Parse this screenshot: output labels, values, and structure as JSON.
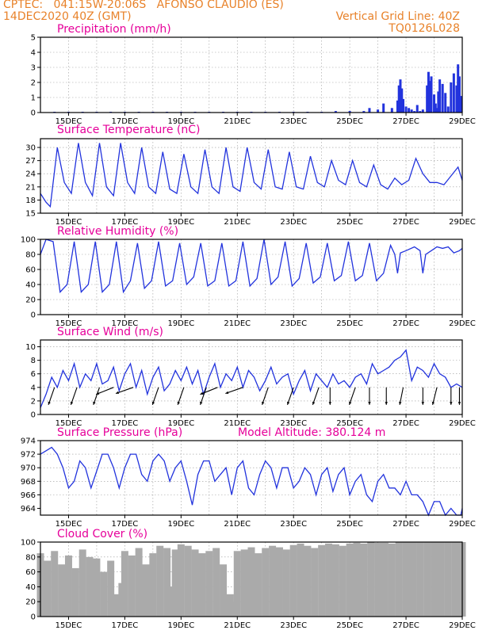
{
  "header": {
    "station": "CPTEC:   041:15W-20:06S   AFONSO CLAUDIO (ES)",
    "run": "14DEC2020 40Z (GMT)",
    "grid_line": "Vertical Grid Line: 40Z",
    "code": "TQ0126L028"
  },
  "colors": {
    "header": "#e8822a",
    "title": "#e6009a",
    "line": "#2233dd",
    "cloud": "#aaaaaa",
    "grid": "#999999"
  },
  "chart_data": [
    {
      "type": "bar",
      "title": "Precipitation (mm/h)",
      "ylim": [
        0,
        5
      ],
      "yticks": [
        0,
        1,
        2,
        3,
        4,
        5
      ],
      "xticks": [
        "15DEC",
        "17DEC",
        "19DEC",
        "21DEC",
        "23DEC",
        "25DEC",
        "27DEC",
        "29DEC"
      ],
      "series": [
        {
          "x": [
            0.5,
            1.0,
            1.5,
            2.0,
            2.5,
            3.0,
            3.5,
            4.0,
            4.5,
            5.0,
            5.5,
            6.0,
            6.5,
            7.0,
            7.5,
            8.0,
            8.5,
            9.0,
            9.5,
            10.0,
            10.5,
            11.0,
            11.5,
            11.7,
            12.0,
            12.2,
            12.5,
            12.7,
            12.75,
            12.8,
            12.85,
            12.9,
            13.0,
            13.1,
            13.2,
            13.3,
            13.4,
            13.5,
            13.6,
            13.75,
            13.8,
            13.85,
            13.9,
            14.0,
            14.05,
            14.1,
            14.15,
            14.2,
            14.3,
            14.4,
            14.5,
            14.6,
            14.7,
            14.8,
            14.85,
            14.9,
            14.95
          ],
          "values": [
            0.05,
            0.05,
            0.05,
            0.05,
            0.05,
            0.05,
            0.05,
            0.05,
            0.05,
            0.05,
            0.05,
            0.05,
            0.05,
            0.05,
            0.05,
            0.05,
            0.05,
            0.05,
            0.05,
            0.05,
            0.1,
            0.1,
            0.1,
            0.3,
            0.2,
            0.6,
            0.3,
            0.8,
            1.8,
            2.2,
            1.6,
            0.9,
            0.4,
            0.3,
            0.2,
            0.1,
            0.5,
            0.1,
            0.2,
            1.8,
            2.7,
            2.1,
            2.4,
            1.2,
            0.6,
            0.3,
            1.4,
            2.2,
            1.9,
            1.3,
            0.4,
            2.0,
            2.6,
            1.8,
            3.2,
            2.4,
            1.1
          ]
        }
      ]
    },
    {
      "type": "line",
      "title": "Surface Temperature (nC)",
      "ylim": [
        15,
        32
      ],
      "yticks": [
        15,
        18,
        21,
        24,
        27,
        30
      ],
      "xticks": [
        "15DEC",
        "17DEC",
        "19DEC",
        "21DEC",
        "23DEC",
        "25DEC",
        "27DEC",
        "29DEC"
      ],
      "series": [
        {
          "x": [
            0.0,
            0.2,
            0.35,
            0.6,
            0.85,
            1.1,
            1.35,
            1.6,
            1.85,
            2.1,
            2.35,
            2.6,
            2.85,
            3.1,
            3.35,
            3.6,
            3.85,
            4.1,
            4.35,
            4.6,
            4.85,
            5.1,
            5.35,
            5.6,
            5.85,
            6.1,
            6.35,
            6.6,
            6.85,
            7.1,
            7.35,
            7.6,
            7.85,
            8.1,
            8.35,
            8.6,
            8.85,
            9.1,
            9.35,
            9.6,
            9.85,
            10.1,
            10.35,
            10.6,
            10.85,
            11.1,
            11.35,
            11.6,
            11.85,
            12.1,
            12.35,
            12.6,
            12.85,
            13.1,
            13.35,
            13.6,
            13.85,
            14.1,
            14.35,
            14.6,
            14.85,
            15.0
          ],
          "values": [
            19.5,
            17.5,
            16.5,
            30,
            22,
            19.5,
            31,
            22,
            19,
            31,
            21,
            19,
            31,
            22,
            19.5,
            30,
            21,
            19.5,
            29,
            20.5,
            19.5,
            28.5,
            21,
            19.5,
            29.5,
            21,
            19.5,
            30,
            21,
            20,
            30,
            22,
            20.5,
            29.5,
            21,
            20.5,
            29,
            21,
            20.5,
            28,
            22,
            21,
            27,
            22.5,
            21.5,
            27,
            22,
            21,
            26,
            21.5,
            20.5,
            23,
            21.5,
            22.5,
            27.5,
            24,
            22,
            22,
            21.5,
            23.5,
            25.5,
            22.5
          ]
        }
      ]
    },
    {
      "type": "line",
      "title": "Relative Humidity (%)",
      "ylim": [
        0,
        100
      ],
      "yticks": [
        0,
        20,
        40,
        60,
        80,
        100
      ],
      "xticks": [
        "15DEC",
        "17DEC",
        "19DEC",
        "21DEC",
        "23DEC",
        "25DEC",
        "27DEC",
        "29DEC"
      ],
      "series": [
        {
          "x": [
            0.0,
            0.2,
            0.45,
            0.7,
            0.95,
            1.2,
            1.45,
            1.7,
            1.95,
            2.2,
            2.45,
            2.7,
            2.95,
            3.2,
            3.45,
            3.7,
            3.95,
            4.2,
            4.45,
            4.7,
            4.95,
            5.2,
            5.45,
            5.7,
            5.95,
            6.2,
            6.45,
            6.7,
            6.95,
            7.2,
            7.45,
            7.7,
            7.95,
            8.2,
            8.45,
            8.7,
            8.95,
            9.2,
            9.45,
            9.7,
            9.95,
            10.2,
            10.45,
            10.7,
            10.95,
            11.2,
            11.45,
            11.7,
            11.95,
            12.2,
            12.45,
            12.6,
            12.7,
            12.8,
            13.0,
            13.3,
            13.5,
            13.6,
            13.7,
            13.9,
            14.1,
            14.3,
            14.5,
            14.7,
            14.9,
            15.0
          ],
          "values": [
            80,
            100,
            97,
            30,
            40,
            97,
            30,
            40,
            97,
            30,
            40,
            97,
            30,
            45,
            95,
            35,
            45,
            97,
            38,
            45,
            95,
            40,
            50,
            95,
            38,
            45,
            95,
            38,
            45,
            97,
            38,
            48,
            100,
            40,
            50,
            97,
            38,
            48,
            95,
            42,
            50,
            95,
            45,
            52,
            97,
            45,
            52,
            95,
            45,
            55,
            92,
            80,
            55,
            82,
            85,
            90,
            85,
            55,
            80,
            85,
            90,
            88,
            90,
            82,
            85,
            88
          ]
        }
      ]
    },
    {
      "type": "line",
      "title": "Surface Wind (m/s)",
      "ylim": [
        0,
        11
      ],
      "yticks": [
        0,
        2,
        4,
        6,
        8,
        10
      ],
      "xticks": [
        "15DEC",
        "17DEC",
        "19DEC",
        "21DEC",
        "23DEC",
        "25DEC",
        "27DEC",
        "29DEC"
      ],
      "series": [
        {
          "x": [
            0.0,
            0.2,
            0.4,
            0.6,
            0.8,
            1.0,
            1.2,
            1.4,
            1.6,
            1.8,
            2.0,
            2.2,
            2.4,
            2.6,
            2.8,
            3.0,
            3.2,
            3.4,
            3.6,
            3.8,
            4.0,
            4.2,
            4.4,
            4.6,
            4.8,
            5.0,
            5.2,
            5.4,
            5.6,
            5.8,
            6.0,
            6.2,
            6.4,
            6.6,
            6.8,
            7.0,
            7.2,
            7.4,
            7.6,
            7.8,
            8.0,
            8.2,
            8.4,
            8.6,
            8.8,
            9.0,
            9.2,
            9.4,
            9.6,
            9.8,
            10.0,
            10.2,
            10.4,
            10.6,
            10.8,
            11.0,
            11.2,
            11.4,
            11.6,
            11.8,
            12.0,
            12.2,
            12.4,
            12.6,
            12.8,
            13.0,
            13.2,
            13.4,
            13.6,
            13.8,
            14.0,
            14.2,
            14.4,
            14.6,
            14.8,
            15.0
          ],
          "values": [
            1,
            3,
            5.5,
            4,
            6.5,
            5,
            7.5,
            4,
            6,
            5,
            7.5,
            4.5,
            5,
            7,
            3.5,
            6,
            7.5,
            4,
            6.5,
            3,
            5.5,
            7,
            3.5,
            4.5,
            6.5,
            5,
            7,
            4.5,
            6.5,
            3,
            5.5,
            7.5,
            4,
            6,
            5,
            7,
            4,
            6.5,
            5.5,
            3.5,
            5,
            7,
            4.5,
            5.5,
            6,
            3,
            5,
            6.5,
            3.5,
            6,
            5,
            4,
            6,
            4.5,
            5,
            4,
            5.5,
            6,
            4.5,
            7.5,
            6,
            6.5,
            7,
            8,
            8.5,
            9.5,
            5,
            7,
            6.5,
            5.5,
            7.5,
            6,
            5.5,
            4,
            4.5,
            4
          ]
        }
      ]
    },
    {
      "type": "line",
      "title": "Surface Pressure (hPa)",
      "annotation": "Model Altitude: 380.124 m",
      "ylim": [
        963,
        974
      ],
      "yticks": [
        964,
        966,
        968,
        970,
        972,
        974
      ],
      "xticks": [
        "15DEC",
        "17DEC",
        "19DEC",
        "21DEC",
        "23DEC",
        "25DEC",
        "27DEC",
        "29DEC"
      ],
      "series": [
        {
          "x": [
            0.0,
            0.2,
            0.4,
            0.6,
            0.8,
            1.0,
            1.2,
            1.4,
            1.6,
            1.8,
            2.0,
            2.2,
            2.4,
            2.6,
            2.8,
            3.0,
            3.2,
            3.4,
            3.6,
            3.8,
            4.0,
            4.2,
            4.4,
            4.6,
            4.8,
            5.0,
            5.2,
            5.4,
            5.6,
            5.8,
            6.0,
            6.2,
            6.4,
            6.6,
            6.8,
            7.0,
            7.2,
            7.4,
            7.6,
            7.8,
            8.0,
            8.2,
            8.4,
            8.6,
            8.8,
            9.0,
            9.2,
            9.4,
            9.6,
            9.8,
            10.0,
            10.2,
            10.4,
            10.6,
            10.8,
            11.0,
            11.2,
            11.4,
            11.6,
            11.8,
            12.0,
            12.2,
            12.4,
            12.6,
            12.8,
            13.0,
            13.2,
            13.4,
            13.6,
            13.8,
            14.0,
            14.2,
            14.4,
            14.6,
            14.8,
            14.95,
            15.0
          ],
          "values": [
            972,
            972.5,
            973,
            972,
            970,
            967,
            968,
            971,
            970,
            967,
            969.5,
            972,
            972,
            970,
            967,
            970,
            972,
            972,
            969,
            968,
            971,
            972,
            971,
            968,
            970,
            971,
            968,
            964.5,
            969,
            971,
            971,
            968,
            969,
            970,
            966,
            970,
            971,
            967,
            966,
            969,
            971,
            970,
            967,
            970,
            970,
            967,
            968,
            970,
            969,
            966,
            969,
            970,
            966.5,
            969,
            970,
            966,
            968,
            969,
            966,
            965,
            968,
            969,
            967,
            967,
            966,
            968,
            966,
            966,
            965,
            963,
            965,
            965,
            963,
            964,
            963,
            963,
            964
          ]
        }
      ]
    },
    {
      "type": "bar",
      "title": "Cloud Cover (%)",
      "ylim": [
        0,
        100
      ],
      "yticks": [
        0,
        20,
        40,
        60,
        80,
        100
      ],
      "xticks": [
        "15DEC",
        "17DEC",
        "19DEC",
        "21DEC",
        "23DEC",
        "25DEC",
        "27DEC",
        "29DEC"
      ],
      "series": [
        {
          "x": [
            0.0,
            0.25,
            0.5,
            0.75,
            1.0,
            1.25,
            1.5,
            1.75,
            2.0,
            2.25,
            2.5,
            2.7,
            2.75,
            2.9,
            3.0,
            3.25,
            3.5,
            3.75,
            4.0,
            4.25,
            4.5,
            4.7,
            4.75,
            4.8,
            5.0,
            5.25,
            5.5,
            5.75,
            6.0,
            6.25,
            6.5,
            6.6,
            6.75,
            6.9,
            7.0,
            7.25,
            7.5,
            7.75,
            8.0,
            8.25,
            8.5,
            8.75,
            9.0,
            9.25,
            9.5,
            9.75,
            10.0,
            10.25,
            10.5,
            10.75,
            11.0,
            11.25,
            11.5,
            11.75,
            12.0,
            12.25,
            12.5,
            12.75,
            13.0,
            13.25,
            13.5,
            13.75,
            14.0,
            14.25,
            14.5,
            14.75,
            15.0
          ],
          "values": [
            85,
            75,
            88,
            70,
            82,
            65,
            90,
            80,
            78,
            60,
            75,
            30,
            2,
            45,
            88,
            82,
            92,
            70,
            85,
            95,
            92,
            40,
            0,
            90,
            97,
            95,
            90,
            85,
            88,
            92,
            70,
            5,
            30,
            20,
            88,
            90,
            93,
            85,
            92,
            95,
            93,
            90,
            96,
            98,
            95,
            92,
            96,
            98,
            97,
            95,
            98,
            99,
            98,
            100,
            99,
            99,
            98,
            100,
            100,
            100,
            100,
            100,
            100,
            100,
            100,
            100,
            100
          ]
        }
      ]
    }
  ],
  "wind_vectors": [
    {
      "x": 0.5,
      "u": -0.35,
      "v": -1.0
    },
    {
      "x": 1.3,
      "u": -0.35,
      "v": -1.0
    },
    {
      "x": 2.1,
      "u": -0.35,
      "v": -1.0
    },
    {
      "x": 2.6,
      "u": -1.0,
      "v": -0.4
    },
    {
      "x": 3.3,
      "u": -1.0,
      "v": -0.35
    },
    {
      "x": 4.2,
      "u": -0.35,
      "v": -1.0
    },
    {
      "x": 5.1,
      "u": -0.35,
      "v": -1.0
    },
    {
      "x": 5.9,
      "u": -0.35,
      "v": -1.0
    },
    {
      "x": 6.3,
      "u": -1.0,
      "v": -0.4
    },
    {
      "x": 7.2,
      "u": -1.0,
      "v": -0.35
    },
    {
      "x": 8.1,
      "u": -0.35,
      "v": -1.0
    },
    {
      "x": 9.0,
      "u": -0.35,
      "v": -1.0
    },
    {
      "x": 9.9,
      "u": -0.35,
      "v": -1.0
    },
    {
      "x": 10.3,
      "u": 0.0,
      "v": -1.0
    },
    {
      "x": 11.2,
      "u": -0.35,
      "v": -1.0
    },
    {
      "x": 11.7,
      "u": 0.0,
      "v": -1.0
    },
    {
      "x": 12.3,
      "u": 0.0,
      "v": -1.0
    },
    {
      "x": 12.9,
      "u": -0.2,
      "v": -1.0
    },
    {
      "x": 13.6,
      "u": 0.0,
      "v": -1.0
    },
    {
      "x": 14.1,
      "u": -0.25,
      "v": -1.0
    },
    {
      "x": 14.6,
      "u": 0.0,
      "v": -1.0
    },
    {
      "x": 14.9,
      "u": 0.0,
      "v": -1.0
    }
  ]
}
